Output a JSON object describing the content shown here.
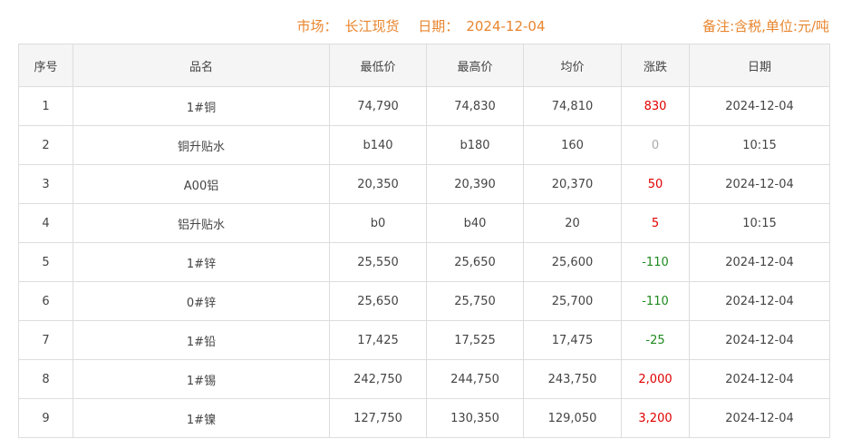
{
  "header": {
    "market_label": "市场：",
    "market": "长江现货",
    "date_label": "日期：",
    "date": "2024-12-04",
    "note": "备注:含税,单位:元/吨"
  },
  "colors": {
    "accent": "#e8852e",
    "up": "#e00000",
    "down": "#1e8a1e",
    "flat": "#aaaaaa"
  },
  "table": {
    "columns": [
      "序号",
      "品名",
      "最低价",
      "最高价",
      "均价",
      "涨跌",
      "日期"
    ],
    "rows": [
      [
        "1",
        "1#铜",
        "74,790",
        "74,830",
        "74,810",
        "830",
        "2024-12-04",
        "up"
      ],
      [
        "2",
        "铜升贴水",
        "b140",
        "b180",
        "160",
        "0",
        "10:15",
        "flat"
      ],
      [
        "3",
        "A00铝",
        "20,350",
        "20,390",
        "20,370",
        "50",
        "2024-12-04",
        "up"
      ],
      [
        "4",
        "铝升贴水",
        "b0",
        "b40",
        "20",
        "5",
        "10:15",
        "up"
      ],
      [
        "5",
        "1#锌",
        "25,550",
        "25,650",
        "25,600",
        "-110",
        "2024-12-04",
        "down"
      ],
      [
        "6",
        "0#锌",
        "25,650",
        "25,750",
        "25,700",
        "-110",
        "2024-12-04",
        "down"
      ],
      [
        "7",
        "1#铅",
        "17,425",
        "17,525",
        "17,475",
        "-25",
        "2024-12-04",
        "down"
      ],
      [
        "8",
        "1#锡",
        "242,750",
        "244,750",
        "243,750",
        "2,000",
        "2024-12-04",
        "up"
      ],
      [
        "9",
        "1#镍",
        "127,750",
        "130,350",
        "129,050",
        "3,200",
        "2024-12-04",
        "up"
      ]
    ]
  }
}
